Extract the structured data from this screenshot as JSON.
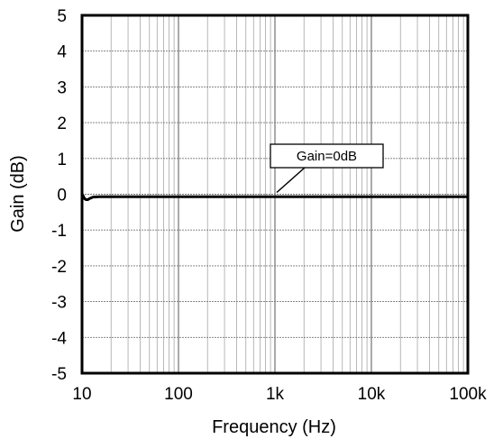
{
  "chart_data": {
    "type": "line",
    "title": "",
    "xlabel": "Frequency (Hz)",
    "ylabel": "Gain (dB)",
    "x_scale": "log",
    "xlim": [
      10,
      100000
    ],
    "ylim": [
      -5,
      5
    ],
    "x_ticks": [
      {
        "value": 10,
        "label": "10"
      },
      {
        "value": 100,
        "label": "100"
      },
      {
        "value": 1000,
        "label": "1k"
      },
      {
        "value": 10000,
        "label": "10k"
      },
      {
        "value": 100000,
        "label": "100k"
      }
    ],
    "y_ticks": [
      {
        "value": 5,
        "label": "5"
      },
      {
        "value": 4,
        "label": "4"
      },
      {
        "value": 3,
        "label": "3"
      },
      {
        "value": 2,
        "label": "2"
      },
      {
        "value": 1,
        "label": "1"
      },
      {
        "value": 0,
        "label": "0"
      },
      {
        "value": -1,
        "label": "-1"
      },
      {
        "value": -2,
        "label": "-2"
      },
      {
        "value": -3,
        "label": "-3"
      },
      {
        "value": -4,
        "label": "-4"
      },
      {
        "value": -5,
        "label": "-5"
      }
    ],
    "grid": true,
    "series": [
      {
        "color": "#000000",
        "x": [
          10,
          10.3,
          10.6,
          11,
          11.5,
          12,
          13,
          15,
          20,
          50,
          100,
          1000,
          10000,
          100000
        ],
        "y": [
          0,
          -0.05,
          -0.12,
          -0.15,
          -0.15,
          -0.12,
          -0.08,
          -0.07,
          -0.07,
          -0.07,
          -0.07,
          -0.07,
          -0.07,
          -0.07
        ]
      }
    ],
    "annotations": [
      {
        "text": "Gain=0dB",
        "point_x": 1000,
        "point_y": 0
      }
    ]
  }
}
